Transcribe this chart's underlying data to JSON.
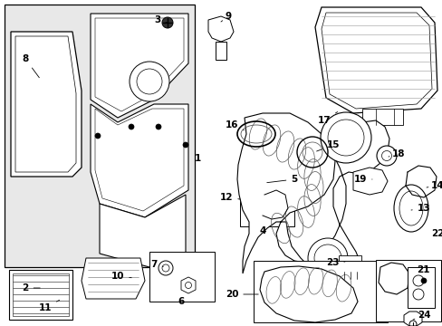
{
  "white": "#ffffff",
  "black": "#000000",
  "bg": "#e8e8e8",
  "fig_w": 4.89,
  "fig_h": 3.6,
  "dpi": 100
}
